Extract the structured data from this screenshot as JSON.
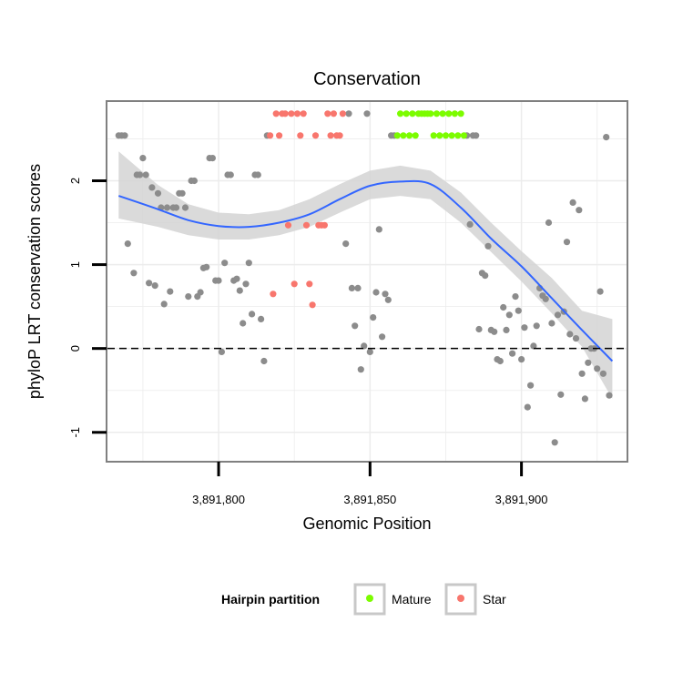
{
  "chart_data": {
    "type": "scatter",
    "title": "Conservation",
    "xlabel": "Genomic Position",
    "ylabel": "phyloP LRT conservation scores",
    "xlim": [
      3891763,
      3891935
    ],
    "ylim": [
      -1.35,
      2.95
    ],
    "x_ticks": [
      {
        "value": 3891800,
        "label": "3,891,800"
      },
      {
        "value": 3891850,
        "label": "3,891,850"
      },
      {
        "value": 3891900,
        "label": "3,891,900"
      }
    ],
    "y_ticks": [
      {
        "value": -1,
        "label": "-1"
      },
      {
        "value": 0,
        "label": "0"
      },
      {
        "value": 1,
        "label": "1"
      },
      {
        "value": 2,
        "label": "2"
      }
    ],
    "reference_line": {
      "y": 0,
      "style": "dashed"
    },
    "legend": {
      "title": "Hairpin partition",
      "position": "bottom",
      "entries": [
        {
          "name": "Mature",
          "color": "#7cfc00"
        },
        {
          "name": "Star",
          "color": "#f8766d"
        }
      ]
    },
    "colors": {
      "other": "#8c8c8c",
      "mature": "#7cfc00",
      "star": "#f8766d",
      "smooth": "#3366ff",
      "band": "#d3d3d3"
    },
    "series": [
      {
        "name": "Other",
        "points": [
          [
            3891767,
            2.54
          ],
          [
            3891768,
            2.54
          ],
          [
            3891769,
            2.54
          ],
          [
            3891770,
            1.25
          ],
          [
            3891772,
            0.9
          ],
          [
            3891773,
            2.07
          ],
          [
            3891774,
            2.07
          ],
          [
            3891775,
            2.27
          ],
          [
            3891776,
            2.07
          ],
          [
            3891777,
            0.78
          ],
          [
            3891778,
            1.92
          ],
          [
            3891779,
            0.75
          ],
          [
            3891780,
            1.85
          ],
          [
            3891781,
            1.68
          ],
          [
            3891782,
            0.53
          ],
          [
            3891783,
            1.68
          ],
          [
            3891784,
            0.68
          ],
          [
            3891785,
            1.68
          ],
          [
            3891786,
            1.68
          ],
          [
            3891787,
            1.85
          ],
          [
            3891788,
            1.85
          ],
          [
            3891789,
            1.68
          ],
          [
            3891790,
            0.62
          ],
          [
            3891791,
            2.0
          ],
          [
            3891792,
            2.0
          ],
          [
            3891793,
            0.62
          ],
          [
            3891794,
            0.67
          ],
          [
            3891795,
            0.96
          ],
          [
            3891796,
            0.97
          ],
          [
            3891797,
            2.27
          ],
          [
            3891798,
            2.27
          ],
          [
            3891799,
            0.81
          ],
          [
            3891800,
            0.81
          ],
          [
            3891801,
            -0.04
          ],
          [
            3891802,
            1.02
          ],
          [
            3891803,
            2.07
          ],
          [
            3891804,
            2.07
          ],
          [
            3891805,
            0.81
          ],
          [
            3891806,
            0.83
          ],
          [
            3891807,
            0.69
          ],
          [
            3891808,
            0.3
          ],
          [
            3891809,
            0.77
          ],
          [
            3891810,
            1.02
          ],
          [
            3891811,
            0.41
          ],
          [
            3891812,
            2.07
          ],
          [
            3891813,
            2.07
          ],
          [
            3891814,
            0.35
          ],
          [
            3891815,
            -0.15
          ],
          [
            3891816,
            2.54
          ],
          [
            3891842,
            1.25
          ],
          [
            3891843,
            2.8
          ],
          [
            3891844,
            0.72
          ],
          [
            3891845,
            0.27
          ],
          [
            3891846,
            0.72
          ],
          [
            3891847,
            -0.25
          ],
          [
            3891848,
            0.03
          ],
          [
            3891849,
            2.8
          ],
          [
            3891850,
            -0.04
          ],
          [
            3891851,
            0.37
          ],
          [
            3891852,
            0.67
          ],
          [
            3891853,
            1.42
          ],
          [
            3891854,
            0.14
          ],
          [
            3891855,
            0.65
          ],
          [
            3891856,
            0.58
          ],
          [
            3891857,
            2.54
          ],
          [
            3891858,
            2.54
          ],
          [
            3891882,
            2.54
          ],
          [
            3891883,
            1.48
          ],
          [
            3891884,
            2.54
          ],
          [
            3891885,
            2.54
          ],
          [
            3891886,
            0.23
          ],
          [
            3891887,
            0.9
          ],
          [
            3891888,
            0.87
          ],
          [
            3891889,
            1.22
          ],
          [
            3891890,
            0.22
          ],
          [
            3891891,
            0.2
          ],
          [
            3891892,
            -0.13
          ],
          [
            3891893,
            -0.15
          ],
          [
            3891894,
            0.49
          ],
          [
            3891895,
            0.22
          ],
          [
            3891896,
            0.4
          ],
          [
            3891897,
            -0.06
          ],
          [
            3891898,
            0.62
          ],
          [
            3891899,
            0.45
          ],
          [
            3891900,
            -0.13
          ],
          [
            3891901,
            0.25
          ],
          [
            3891902,
            -0.7
          ],
          [
            3891903,
            -0.44
          ],
          [
            3891904,
            0.03
          ],
          [
            3891905,
            0.27
          ],
          [
            3891906,
            0.72
          ],
          [
            3891907,
            0.63
          ],
          [
            3891908,
            0.59
          ],
          [
            3891909,
            1.5
          ],
          [
            3891910,
            0.3
          ],
          [
            3891911,
            -1.12
          ],
          [
            3891912,
            0.4
          ],
          [
            3891913,
            -0.55
          ],
          [
            3891914,
            0.44
          ],
          [
            3891915,
            1.27
          ],
          [
            3891916,
            0.17
          ],
          [
            3891917,
            1.74
          ],
          [
            3891918,
            0.12
          ],
          [
            3891919,
            1.65
          ],
          [
            3891920,
            -0.3
          ],
          [
            3891921,
            -0.6
          ],
          [
            3891922,
            -0.17
          ],
          [
            3891923,
            0.0
          ],
          [
            3891924,
            0.0
          ],
          [
            3891925,
            -0.24
          ],
          [
            3891926,
            0.68
          ],
          [
            3891927,
            -0.3
          ],
          [
            3891928,
            2.52
          ],
          [
            3891929,
            -0.56
          ]
        ]
      },
      {
        "name": "Star",
        "points": [
          [
            3891817,
            2.54
          ],
          [
            3891818,
            0.65
          ],
          [
            3891819,
            2.8
          ],
          [
            3891820,
            2.54
          ],
          [
            3891821,
            2.8
          ],
          [
            3891822,
            2.8
          ],
          [
            3891823,
            1.47
          ],
          [
            3891824,
            2.8
          ],
          [
            3891825,
            0.77
          ],
          [
            3891826,
            2.8
          ],
          [
            3891827,
            2.54
          ],
          [
            3891828,
            2.8
          ],
          [
            3891829,
            1.47
          ],
          [
            3891830,
            0.77
          ],
          [
            3891831,
            0.52
          ],
          [
            3891832,
            2.54
          ],
          [
            3891833,
            1.47
          ],
          [
            3891834,
            1.47
          ],
          [
            3891835,
            1.47
          ],
          [
            3891836,
            2.8
          ],
          [
            3891837,
            2.54
          ],
          [
            3891838,
            2.8
          ],
          [
            3891839,
            2.54
          ],
          [
            3891840,
            2.54
          ],
          [
            3891841,
            2.8
          ]
        ]
      },
      {
        "name": "Mature",
        "points": [
          [
            3891859,
            2.54
          ],
          [
            3891860,
            2.8
          ],
          [
            3891861,
            2.54
          ],
          [
            3891862,
            2.8
          ],
          [
            3891863,
            2.54
          ],
          [
            3891864,
            2.8
          ],
          [
            3891865,
            2.54
          ],
          [
            3891866,
            2.8
          ],
          [
            3891867,
            2.8
          ],
          [
            3891868,
            2.8
          ],
          [
            3891869,
            2.8
          ],
          [
            3891870,
            2.8
          ],
          [
            3891871,
            2.54
          ],
          [
            3891872,
            2.8
          ],
          [
            3891873,
            2.54
          ],
          [
            3891874,
            2.8
          ],
          [
            3891875,
            2.54
          ],
          [
            3891876,
            2.8
          ],
          [
            3891877,
            2.54
          ],
          [
            3891878,
            2.8
          ],
          [
            3891879,
            2.54
          ],
          [
            3891880,
            2.8
          ],
          [
            3891881,
            2.54
          ]
        ]
      }
    ],
    "smooth": {
      "x": [
        3891767,
        3891780,
        3891790,
        3891800,
        3891810,
        3891820,
        3891830,
        3891840,
        3891850,
        3891860,
        3891870,
        3891880,
        3891890,
        3891900,
        3891910,
        3891920,
        3891930
      ],
      "y": [
        1.82,
        1.66,
        1.53,
        1.46,
        1.45,
        1.5,
        1.6,
        1.78,
        1.94,
        1.99,
        1.96,
        1.68,
        1.31,
        0.98,
        0.6,
        0.22,
        -0.15
      ],
      "lower": [
        1.55,
        1.45,
        1.35,
        1.3,
        1.3,
        1.35,
        1.45,
        1.62,
        1.78,
        1.82,
        1.78,
        1.5,
        1.15,
        0.8,
        0.42,
        0.02,
        -0.6
      ],
      "upper": [
        2.35,
        1.95,
        1.72,
        1.62,
        1.6,
        1.65,
        1.78,
        1.96,
        2.12,
        2.18,
        2.12,
        1.86,
        1.5,
        1.16,
        0.84,
        0.45,
        0.35
      ]
    }
  }
}
